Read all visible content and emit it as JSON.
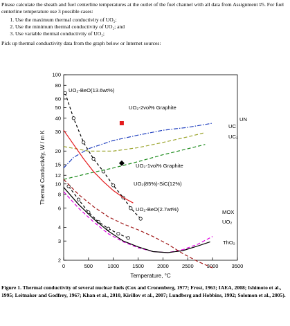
{
  "intro": {
    "paragraph": "Please calculate the sheath and fuel centerline temperatures at the outlet of the fuel channel with all data from Assignment #5.  For fuel centerline temperature use 3 possible cases:",
    "cases": [
      "Use the maximum thermal conductivity of UO₂;",
      "Use the minimum thermal conductivity of UO₂; and",
      "Use variable thermal conductivity of UO₂;"
    ],
    "pick_up": "Pick up thermal conductivity data from the graph below or Internet sources:"
  },
  "caption": {
    "label": "Figure 1.",
    "text": " Thermal conductivity of several nuclear fuels (Cox and Cronenberg, 1977; Frost, 1963; IAEA, 2008; Ishimoto et al., 1995; Leitnaker and Godfrey, 1967; Khan et al., 2010, Kirillov et al., 2007; Lundberg and Hobbins, 1992; Solomon et al., 2005)."
  },
  "chart_data": {
    "type": "line",
    "xlabel": "Temperature, °C",
    "ylabel": "Thermal Conductivity, W / m K",
    "xlim": [
      0,
      3500
    ],
    "ylim": [
      2,
      100
    ],
    "yscale": "log",
    "x_ticks": [
      0,
      500,
      1000,
      1500,
      2000,
      2500,
      3000,
      3500
    ],
    "y_ticks": [
      2,
      3,
      4,
      6,
      8,
      10,
      12,
      15,
      20,
      30,
      40,
      50,
      60,
      80,
      100
    ],
    "grid": false,
    "legend": "none",
    "series": [
      {
        "name": "UO₂-BeO(13.6wt%)",
        "color": "#000000",
        "style": "dashed-markers",
        "x": [
          30,
          200,
          400,
          600,
          800,
          1000,
          1200,
          1350,
          1550
        ],
        "y": [
          68,
          40,
          24,
          17,
          13,
          9.7,
          7.5,
          6.0,
          4.8
        ]
      },
      {
        "name": "UO₂-2vol% Graphite",
        "color": "#e41a1c",
        "style": "marker",
        "x": [
          1170
        ],
        "y": [
          36
        ]
      },
      {
        "name": "UN",
        "color": "#1f3fbf",
        "style": "dash-dot",
        "x": [
          0,
          200,
          500,
          1000,
          1500,
          2000,
          2500,
          3000
        ],
        "y": [
          14,
          17.5,
          21,
          25,
          28,
          31,
          33,
          36
        ]
      },
      {
        "name": "UC",
        "color": "#9aa32a",
        "style": "dashed",
        "x": [
          0,
          500,
          1000,
          1500,
          2000,
          2500,
          2850
        ],
        "y": [
          22,
          20,
          20,
          21.5,
          24,
          27,
          29.5
        ]
      },
      {
        "name": "UC₂",
        "color": "#1e8c1e",
        "style": "dashed",
        "x": [
          0,
          500,
          1000,
          1500,
          2000,
          2500,
          2850
        ],
        "y": [
          11,
          12.5,
          14,
          16,
          18.5,
          21,
          23
        ]
      },
      {
        "name": "UO₂-1vol% Graphite",
        "color": "#000000",
        "style": "marker",
        "x": [
          1170
        ],
        "y": [
          15.5
        ]
      },
      {
        "name": "UO₂(85%)-SiC(12%)",
        "color": "#e41a1c",
        "style": "solid",
        "x": [
          0,
          200,
          400,
          600,
          800,
          1000,
          1200,
          1400
        ],
        "y": [
          31,
          23,
          17,
          13,
          10.5,
          8.7,
          7.5,
          6.7
        ]
      },
      {
        "name": "UO₂-BeO(2.7wt%)",
        "color": "#000000",
        "style": "dashed-markers",
        "x": [
          100,
          300,
          500,
          700,
          900,
          1100,
          1300
        ],
        "y": [
          9.5,
          7.2,
          5.5,
          4.5,
          3.9,
          3.5,
          3.2
        ]
      },
      {
        "name": "MOX",
        "color": "#e000e0",
        "style": "dashed",
        "x": [
          0,
          300,
          600,
          900,
          1200,
          1500,
          1800,
          2100,
          2400,
          2700,
          3000
        ],
        "y": [
          8.5,
          6.0,
          4.5,
          3.5,
          2.95,
          2.6,
          2.4,
          2.35,
          2.5,
          2.8,
          3.3
        ]
      },
      {
        "name": "UO₂",
        "color": "#000000",
        "style": "solid",
        "x": [
          0,
          300,
          600,
          900,
          1200,
          1500,
          1800,
          2100,
          2400,
          2700,
          2950
        ],
        "y": [
          9.3,
          6.5,
          4.8,
          3.7,
          3.0,
          2.65,
          2.4,
          2.35,
          2.45,
          2.7,
          2.95
        ]
      },
      {
        "name": "ThO₂",
        "color": "#a01818",
        "style": "dashed",
        "x": [
          0,
          300,
          600,
          900,
          1200,
          1500,
          1800,
          2100,
          2400,
          2700,
          3000
        ],
        "y": [
          11,
          8.0,
          6.2,
          5.0,
          4.3,
          3.8,
          3.3,
          2.8,
          2.3,
          1.95,
          1.7
        ]
      }
    ],
    "annotations": [
      "UO₂-BeO(13.6wt%)",
      "UO₂-2vol% Graphite",
      "UN",
      "UC",
      "UC₂",
      "UO₂-1vol% Graphite",
      "UO₂(85%)-SiC(12%)",
      "UO₂-BeO(2.7wt%)",
      "MOX",
      "UO₂",
      "ThO₂"
    ]
  }
}
